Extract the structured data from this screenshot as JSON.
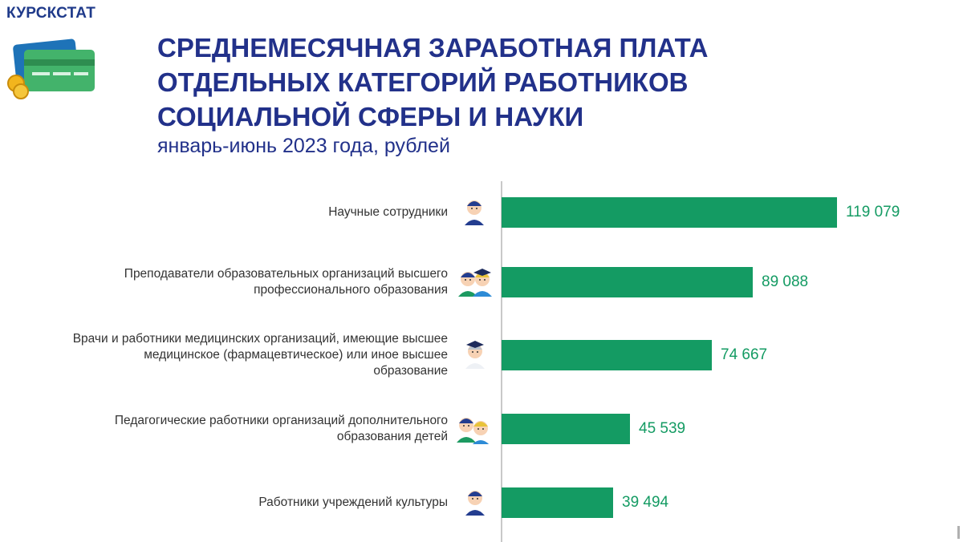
{
  "header": {
    "brand": "КУРСКСТАТ",
    "title_lines": [
      "СРЕДНЕМЕСЯЧНАЯ ЗАРАБОТНАЯ ПЛАТА",
      "ОТДЕЛЬНЫХ КАТЕГОРИЙ РАБОТНИКОВ",
      "СОЦИАЛЬНОЙ СФЕРЫ И НАУКИ"
    ],
    "subtitle": "январь-июнь 2023 года, рублей"
  },
  "colors": {
    "bar": "#149b63",
    "title": "#22318a",
    "brand": "#1f3a8a"
  },
  "chart_data": {
    "type": "bar",
    "orientation": "horizontal",
    "title": "СРЕДНЕМЕСЯЧНАЯ ЗАРАБОТНАЯ ПЛАТА ОТДЕЛЬНЫХ КАТЕГОРИЙ РАБОТНИКОВ СОЦИАЛЬНОЙ СФЕРЫ И НАУКИ",
    "subtitle": "январь-июнь 2023 года, рублей",
    "categories": [
      [
        "Научные сотрудники"
      ],
      [
        "Преподаватели образовательных организаций высшего",
        "профессионального образования"
      ],
      [
        "Врачи и работники медицинских организаций, имеющие высшее",
        "медицинское (фармацевтическое) или иное высшее",
        "образование"
      ],
      [
        "Педагогические работники организаций дополнительного",
        "образования детей"
      ],
      [
        "Работники учреждений культуры"
      ]
    ],
    "values": [
      119079,
      89088,
      74667,
      45539,
      39494
    ],
    "value_labels": [
      "119 079",
      "89 088",
      "74 667",
      "45 539",
      "39 494"
    ],
    "icons": [
      "scientist-icon",
      "lecturers-icon",
      "doctor-icon",
      "teachers-icon",
      "culture-worker-icon"
    ],
    "xlim": [
      0,
      119079
    ],
    "grid": false,
    "legend": "none"
  }
}
